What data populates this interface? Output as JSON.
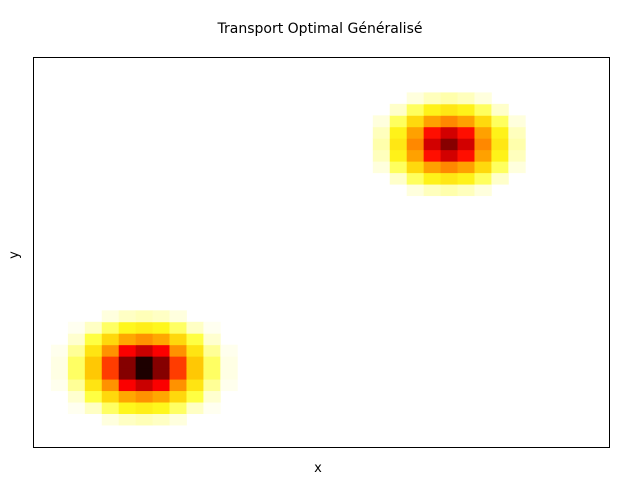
{
  "chart_data": {
    "type": "heatmap",
    "title": "Transport Optimal Généralisé",
    "xlabel": "x",
    "ylabel": "y",
    "xticks": [],
    "yticks": [],
    "grid": false,
    "legend": "none",
    "colormap": "hot_r",
    "colormap_stops": [
      "#ffffff",
      "#ffff20",
      "#ffc000",
      "#ff8000",
      "#ff0000",
      "#a00000",
      "#000000"
    ],
    "grid_size": [
      34,
      34
    ],
    "value_range": [
      0,
      1
    ],
    "blobs": [
      {
        "name": "bottom-left",
        "cx": 6.5,
        "cy": 7.0,
        "sigma": 1.6,
        "peak": 1.0
      },
      {
        "name": "top-right",
        "cx": 24.5,
        "cy": 26.5,
        "sigma": 1.5,
        "peak": 0.78
      }
    ]
  }
}
